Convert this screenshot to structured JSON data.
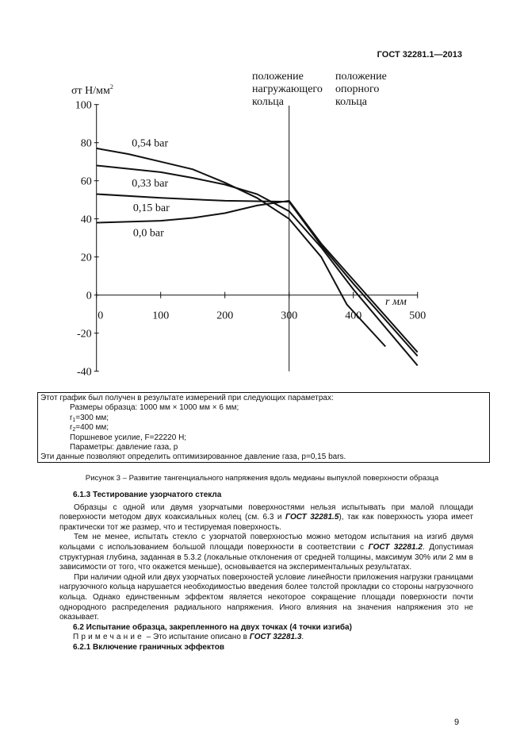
{
  "header": {
    "doc_id": "ГОСТ 32281.1—2013"
  },
  "chart_data": {
    "type": "line",
    "ylabel": "σт Н/мм²",
    "xlabel": "r мм",
    "xlim": [
      0,
      500
    ],
    "ylim": [
      -40,
      100
    ],
    "x_ticks": [
      "0",
      "100",
      "200",
      "300",
      "400",
      "500"
    ],
    "y_ticks": [
      "100",
      "80",
      "60",
      "40",
      "20",
      "0",
      "-20",
      "-40"
    ],
    "grid": false,
    "annotations": [
      {
        "text": [
          "положение",
          "нагружающего",
          "кольца"
        ],
        "at_x": 300
      },
      {
        "text": [
          "положение",
          "опорного",
          "кольца"
        ],
        "at_x": 400
      }
    ],
    "series": [
      {
        "name": "0,54 bar",
        "points": [
          [
            0,
            77
          ],
          [
            50,
            74
          ],
          [
            100,
            70
          ],
          [
            150,
            66
          ],
          [
            200,
            59
          ],
          [
            250,
            51
          ],
          [
            300,
            40
          ],
          [
            350,
            20
          ],
          [
            390,
            -5
          ],
          [
            450,
            -27
          ]
        ]
      },
      {
        "name": "0,33 bar",
        "points": [
          [
            0,
            68
          ],
          [
            100,
            64.5
          ],
          [
            150,
            61.5
          ],
          [
            200,
            58
          ],
          [
            250,
            53
          ],
          [
            300,
            44
          ],
          [
            350,
            25
          ],
          [
            400,
            3
          ],
          [
            500,
            -37
          ]
        ]
      },
      {
        "name": "0,15 bar",
        "points": [
          [
            0,
            53
          ],
          [
            100,
            51
          ],
          [
            200,
            49.5
          ],
          [
            300,
            49
          ],
          [
            350,
            26
          ],
          [
            400,
            6
          ],
          [
            500,
            -32
          ]
        ]
      },
      {
        "name": "0,0 bar",
        "points": [
          [
            0,
            38
          ],
          [
            100,
            39
          ],
          [
            150,
            40.5
          ],
          [
            200,
            43
          ],
          [
            250,
            47
          ],
          [
            300,
            49.5
          ],
          [
            350,
            27
          ],
          [
            400,
            8
          ],
          [
            500,
            -30
          ]
        ]
      }
    ]
  },
  "box": {
    "intro": "Этот график был получен в результате измерений при следующих параметрах:",
    "size": "Размеры образца: 1000 мм × 1000 мм × 6 мм;",
    "r1_sym": "r",
    "r1_sub": "1",
    "r1_val": "=300 мм;",
    "r2_sym": "r",
    "r2_sub": "2",
    "r2_val": "=400 мм;",
    "force": "Поршневое усилие, F=22220 Н;",
    "params": "Параметры: давление газа, p",
    "conclusion": "Эти данные позволяют определить оптимизированное давление газа, p=0,15 bars."
  },
  "caption": "Рисунок 3 – Развитие тангенциального напряжения вдоль медианы выпуклой поверхности образца",
  "section_613": {
    "title": "6.1.3 Тестирование узорчатого стекла",
    "p1_a": "Образцы с одной или двумя узорчатыми поверхностями нельзя испытывать при малой площади поверхности методом двух коаксиальных колец (см. 6.3 и ",
    "p1_ref": "ГОСТ 32281.5",
    "p1_b": "), так как поверхность узора имеет практически тот же размер, что и тестируемая поверхность.",
    "p2_a": "Тем не менее, испытать стекло с узорчатой поверхностью можно методом испытания на изгиб двумя кольцами с использованием большой площади поверхности в соответствии с ",
    "p2_ref": "ГОСТ 32281.2",
    "p2_b": ". Допустимая структурная глубина, заданная в 5.3.2 (локальные отклонения от средней толщины, максимум 30% или 2 мм в зависимости от того, что окажется меньше), основывается на экспериментальных результатах.",
    "p3": "При наличии одной или двух узорчатых поверхностей условие линейности приложения нагрузки границами нагрузочного кольца нарушается необходимостью введения более толстой прокладки со стороны нагрузочного кольца. Однако единственным эффектом является некоторое сокращение площади поверхности почти однородного распределения радиального напряжения. Иного влияния на значения напряжения это не оказывает."
  },
  "section_62": {
    "title": "6.2 Испытание образца, закрепленного на двух точках (4 точки изгиба)",
    "note_label": "Примечание",
    "note_a": " – Это испытание описано в ",
    "note_ref": "ГОСТ 32281.3",
    "note_b": "."
  },
  "section_621": {
    "title": "6.2.1 Включение граничных эффектов"
  },
  "page_number": "9"
}
